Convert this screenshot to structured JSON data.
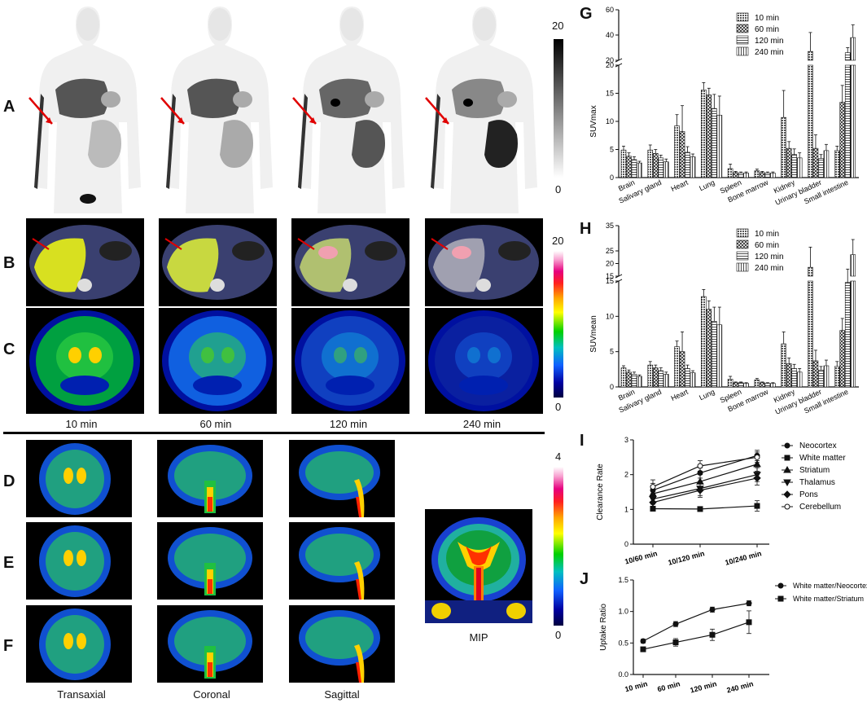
{
  "panel_letters": {
    "A": "A",
    "B": "B",
    "C": "C",
    "D": "D",
    "E": "E",
    "F": "F",
    "G": "G",
    "H": "H",
    "I": "I",
    "J": "J"
  },
  "time_labels": [
    "10 min",
    "60 min",
    "120 min",
    "240 min"
  ],
  "view_labels": [
    "Transaxial",
    "Coronal",
    "Sagittal"
  ],
  "mip_label": "MIP",
  "scale_A": {
    "max": "20",
    "min": "0"
  },
  "scale_BC": {
    "max": "20",
    "min": "0"
  },
  "scale_DF": {
    "max": "4",
    "min": "0"
  },
  "colors": {
    "c10": "#777",
    "c60": "#bbb",
    "c120": "#eee",
    "c240": "#ddd",
    "bar_stroke": "#111"
  },
  "chart_data": [
    {
      "id": "G",
      "type": "bar",
      "ylabel": "SUVmax",
      "categories": [
        "Brain",
        "Salivary gland",
        "Heart",
        "Lung",
        "Spleen",
        "Bone marrow",
        "Kidney",
        "Urinary bladder",
        "Small intestine"
      ],
      "legend": [
        "10 min",
        "60 min",
        "120 min",
        "240 min"
      ],
      "series": [
        {
          "name": "10 min",
          "values": [
            4.9,
            4.9,
            9.2,
            15.6,
            1.6,
            1.2,
            10.7,
            27.0,
            4.8
          ],
          "err": [
            0.7,
            0.9,
            2.0,
            1.3,
            0.8,
            0.3,
            4.8,
            15.0,
            0.8
          ]
        },
        {
          "name": "60 min",
          "values": [
            3.8,
            4.3,
            8.2,
            14.7,
            0.9,
            0.9,
            5.2,
            5.2,
            13.4
          ],
          "err": [
            0.6,
            0.7,
            4.6,
            1.2,
            0.2,
            0.2,
            1.2,
            2.4,
            3.0
          ]
        },
        {
          "name": "120 min",
          "values": [
            3.2,
            3.5,
            4.5,
            12.3,
            0.8,
            0.8,
            4.1,
            3.4,
            26.0
          ],
          "err": [
            0.5,
            0.5,
            1.0,
            2.5,
            0.2,
            0.2,
            1.0,
            0.7,
            4.0
          ]
        },
        {
          "name": "240 min",
          "values": [
            2.6,
            2.8,
            3.7,
            11.1,
            0.8,
            0.8,
            3.5,
            4.8,
            38.0
          ],
          "err": [
            0.3,
            0.5,
            0.5,
            3.4,
            0.2,
            0.2,
            0.9,
            1.1,
            10.0
          ]
        }
      ],
      "yticks_low": [
        "0",
        "5",
        "10",
        "15",
        "20"
      ],
      "yticks_high": [
        "20",
        "40",
        "60"
      ]
    },
    {
      "id": "H",
      "type": "bar",
      "ylabel": "SUVmean",
      "categories": [
        "Brain",
        "Salivary gland",
        "Heart",
        "Lung",
        "Spleen",
        "Bone marrow",
        "Kidney",
        "Urinary bladder",
        "Small intestine"
      ],
      "legend": [
        "10 min",
        "60 min",
        "120 min",
        "240 min"
      ],
      "series": [
        {
          "name": "10 min",
          "values": [
            2.7,
            3.1,
            5.7,
            12.8,
            1.1,
            1.0,
            6.1,
            18.5,
            2.9
          ],
          "err": [
            0.3,
            0.5,
            0.8,
            1.0,
            0.4,
            0.2,
            1.7,
            8.0,
            0.7
          ]
        },
        {
          "name": "60 min",
          "values": [
            2.1,
            2.7,
            5.0,
            11.0,
            0.6,
            0.6,
            3.3,
            3.7,
            8.0
          ],
          "err": [
            0.3,
            0.4,
            2.8,
            1.2,
            0.1,
            0.1,
            0.8,
            1.5,
            1.7
          ]
        },
        {
          "name": "120 min",
          "values": [
            1.8,
            2.3,
            2.6,
            9.3,
            0.6,
            0.5,
            2.6,
            2.4,
            14.8
          ],
          "err": [
            0.3,
            0.4,
            0.5,
            2.0,
            0.1,
            0.1,
            0.6,
            0.5,
            3.0
          ]
        },
        {
          "name": "240 min",
          "values": [
            1.5,
            1.8,
            2.0,
            8.8,
            0.5,
            0.5,
            2.1,
            3.0,
            23.5
          ],
          "err": [
            0.2,
            0.3,
            0.3,
            2.5,
            0.1,
            0.1,
            0.5,
            0.8,
            6.0
          ]
        }
      ],
      "yticks_low": [
        "0",
        "5",
        "10",
        "15"
      ],
      "yticks_high": [
        "15",
        "20",
        "25",
        "35"
      ]
    },
    {
      "id": "I",
      "type": "line",
      "ylabel": "Clearance Rate",
      "categories": [
        "10/60 min",
        "10/120 min",
        "10/240 min"
      ],
      "ylim": [
        0,
        3
      ],
      "yticks": [
        "0",
        "1",
        "2",
        "3"
      ],
      "series": [
        {
          "name": "Neocortex",
          "marker": "circle",
          "values": [
            1.55,
            2.05,
            2.55
          ],
          "err": [
            0.2,
            0.15,
            0.15
          ]
        },
        {
          "name": "White matter",
          "marker": "square",
          "values": [
            1.02,
            1.01,
            1.1
          ],
          "err": [
            0.05,
            0.05,
            0.15
          ]
        },
        {
          "name": "Striatum",
          "marker": "triangle",
          "values": [
            1.45,
            1.8,
            2.3
          ],
          "err": [
            0.15,
            0.2,
            0.25
          ]
        },
        {
          "name": "Thalamus",
          "marker": "triangle-down",
          "values": [
            1.3,
            1.6,
            2.0
          ],
          "err": [
            0.15,
            0.2,
            0.2
          ]
        },
        {
          "name": "Pons",
          "marker": "diamond",
          "values": [
            1.2,
            1.55,
            1.9
          ],
          "err": [
            0.15,
            0.2,
            0.2
          ]
        },
        {
          "name": "Cerebellum",
          "marker": "circle-open",
          "values": [
            1.65,
            2.25,
            2.5
          ],
          "err": [
            0.2,
            0.15,
            0.15
          ]
        }
      ]
    },
    {
      "id": "J",
      "type": "line",
      "ylabel": "Uptake Ratio",
      "categories": [
        "10 min",
        "60 min",
        "120 min",
        "240 min"
      ],
      "ylim": [
        0,
        1.5
      ],
      "yticks": [
        "0.0",
        "0.5",
        "1.0",
        "1.5"
      ],
      "series": [
        {
          "name": "White matter/Neocortex",
          "marker": "circle",
          "values": [
            0.53,
            0.8,
            1.03,
            1.13
          ],
          "err": [
            0.03,
            0.04,
            0.04,
            0.04
          ]
        },
        {
          "name": "White matter/Striatum",
          "marker": "square",
          "values": [
            0.4,
            0.51,
            0.63,
            0.83
          ],
          "err": [
            0.02,
            0.06,
            0.09,
            0.18
          ]
        }
      ]
    }
  ]
}
